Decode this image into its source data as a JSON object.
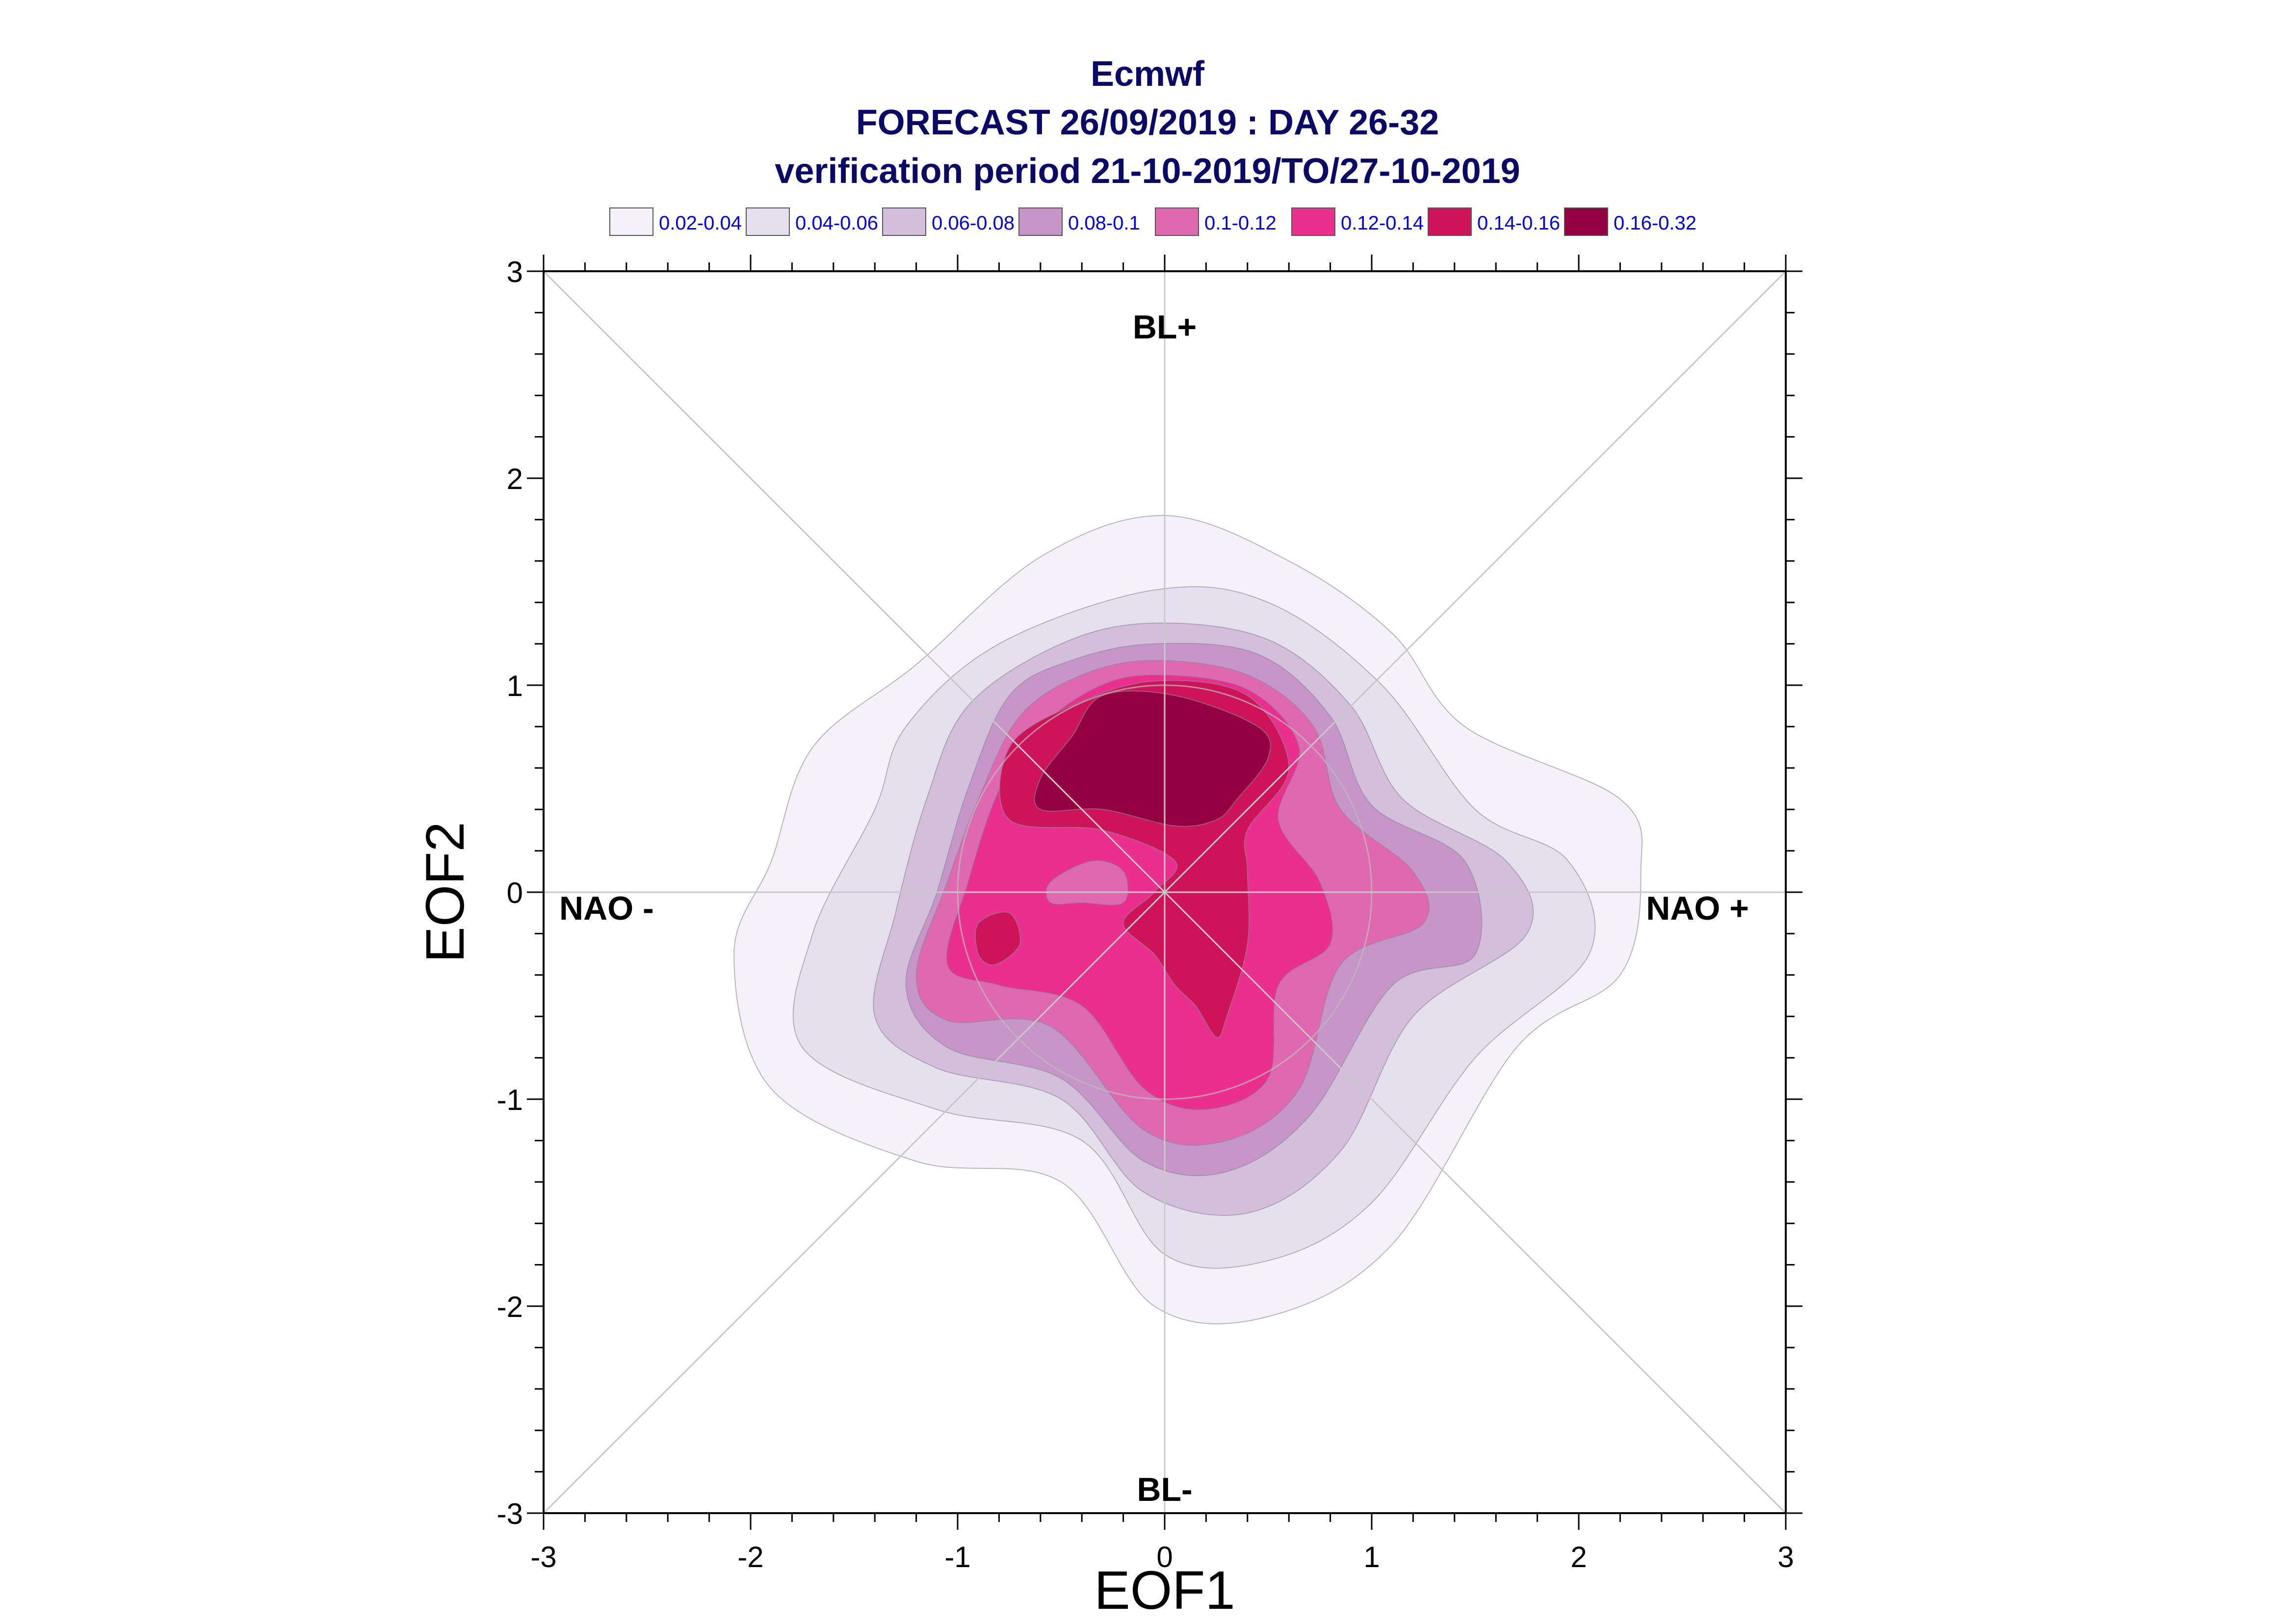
{
  "title_lines": [
    "Ecmwf",
    "FORECAST 26/09/2019 : DAY 26-32",
    "verification period 21-10-2019/TO/27-10-2019"
  ],
  "chart_data": {
    "type": "contour",
    "title": "Ecmwf FORECAST 26/09/2019 : DAY 26-32 verification period 21-10-2019/TO/27-10-2019",
    "xlabel": "EOF1",
    "ylabel": "EOF2",
    "xlim": [
      -3,
      3
    ],
    "ylim": [
      -3,
      3
    ],
    "x_ticks": [
      -3,
      -2,
      -1,
      0,
      1,
      2,
      3
    ],
    "y_ticks": [
      -3,
      -2,
      -1,
      0,
      1,
      2,
      3
    ],
    "x_tick_labels": [
      "-3",
      "-2",
      "-1",
      "0",
      "1",
      "2",
      "3"
    ],
    "y_tick_labels": [
      "-3",
      "-2",
      "-1",
      "0",
      "1",
      "2",
      "3"
    ],
    "legend_placement": "top",
    "legend": [
      {
        "label": "0.02-0.04",
        "color": "#f4f2f8"
      },
      {
        "label": "0.04-0.06",
        "color": "#e6dfee"
      },
      {
        "label": "0.06-0.08",
        "color": "#d3bedb"
      },
      {
        "label": "0.08-0.1",
        "color": "#c795c8"
      },
      {
        "label": "0.1-0.12",
        "color": "#df68b0"
      },
      {
        "label": "0.12-0.14",
        "color": "#ea2f8e"
      },
      {
        "label": "0.14-0.16",
        "color": "#ce1359"
      },
      {
        "label": "0.16-0.32",
        "color": "#950042"
      }
    ],
    "regime_labels": {
      "top": "BL+",
      "bottom": "BL-",
      "left": "NAO -",
      "right": "NAO +"
    },
    "reference_lines": [
      "x=0",
      "y=0",
      "y=x",
      "y=-x",
      "circle r=1"
    ],
    "contours": [
      {
        "level": "0.02-0.04",
        "color": "#f4f2f8",
        "polygon": [
          [
            0,
            1.82
          ],
          [
            0.6,
            1.6
          ],
          [
            1.1,
            1.25
          ],
          [
            1.45,
            0.8
          ],
          [
            2.2,
            0.45
          ],
          [
            2.3,
            0.1
          ],
          [
            2.2,
            -0.4
          ],
          [
            1.7,
            -0.75
          ],
          [
            1.1,
            -1.7
          ],
          [
            0.5,
            -2.05
          ],
          [
            -0.05,
            -2.0
          ],
          [
            -0.5,
            -1.4
          ],
          [
            -1.2,
            -1.3
          ],
          [
            -1.9,
            -0.95
          ],
          [
            -2.08,
            -0.3
          ],
          [
            -1.9,
            0.15
          ],
          [
            -1.7,
            0.7
          ],
          [
            -1.2,
            1.1
          ],
          [
            -0.6,
            1.62
          ]
        ]
      },
      {
        "level": "0.04-0.06",
        "color": "#e6dfee",
        "polygon": [
          [
            -0.05,
            1.46
          ],
          [
            0.5,
            1.4
          ],
          [
            1.05,
            1.0
          ],
          [
            1.5,
            0.4
          ],
          [
            1.95,
            0.15
          ],
          [
            2.05,
            -0.3
          ],
          [
            1.5,
            -0.8
          ],
          [
            1.0,
            -1.5
          ],
          [
            0.5,
            -1.78
          ],
          [
            0,
            -1.75
          ],
          [
            -0.4,
            -1.2
          ],
          [
            -1.1,
            -1.05
          ],
          [
            -1.75,
            -0.75
          ],
          [
            -1.7,
            -0.2
          ],
          [
            -1.4,
            0.4
          ],
          [
            -1.25,
            0.8
          ],
          [
            -0.8,
            1.2
          ]
        ]
      },
      {
        "level": "0.06-0.08",
        "color": "#d3bedb",
        "polygon": [
          [
            -0.05,
            1.3
          ],
          [
            0.5,
            1.22
          ],
          [
            0.9,
            0.9
          ],
          [
            1.15,
            0.45
          ],
          [
            1.65,
            0.15
          ],
          [
            1.75,
            -0.2
          ],
          [
            1.2,
            -0.6
          ],
          [
            0.85,
            -1.25
          ],
          [
            0.4,
            -1.55
          ],
          [
            -0.1,
            -1.45
          ],
          [
            -0.5,
            -1.0
          ],
          [
            -1.1,
            -0.85
          ],
          [
            -1.4,
            -0.6
          ],
          [
            -1.3,
            -0.1
          ],
          [
            -1.15,
            0.45
          ],
          [
            -0.95,
            0.9
          ],
          [
            -0.5,
            1.2
          ]
        ]
      },
      {
        "level": "0.08-0.1",
        "color": "#c795c8",
        "polygon": [
          [
            -0.05,
            1.2
          ],
          [
            0.45,
            1.15
          ],
          [
            0.8,
            0.85
          ],
          [
            1.0,
            0.42
          ],
          [
            1.45,
            0.15
          ],
          [
            1.5,
            -0.3
          ],
          [
            1.1,
            -0.45
          ],
          [
            0.7,
            -1.08
          ],
          [
            0.3,
            -1.35
          ],
          [
            -0.1,
            -1.3
          ],
          [
            -0.5,
            -0.9
          ],
          [
            -1.05,
            -0.75
          ],
          [
            -1.25,
            -0.45
          ],
          [
            -1.1,
            0
          ],
          [
            -0.95,
            0.5
          ],
          [
            -0.75,
            0.95
          ],
          [
            -0.45,
            1.12
          ]
        ]
      },
      {
        "level": "0.1-0.12",
        "color": "#df68b0",
        "polygon": [
          [
            -0.05,
            1.12
          ],
          [
            0.4,
            1.05
          ],
          [
            0.72,
            0.8
          ],
          [
            0.85,
            0.4
          ],
          [
            1.2,
            0.1
          ],
          [
            1.25,
            -0.15
          ],
          [
            0.85,
            -0.35
          ],
          [
            0.65,
            -0.95
          ],
          [
            0.3,
            -1.2
          ],
          [
            -0.1,
            -1.15
          ],
          [
            -0.55,
            -0.65
          ],
          [
            -1.05,
            -0.62
          ],
          [
            -1.2,
            -0.4
          ],
          [
            -1.05,
            0.05
          ],
          [
            -0.9,
            0.45
          ],
          [
            -0.7,
            0.85
          ],
          [
            -0.4,
            1.05
          ]
        ]
      },
      {
        "level": "0.12-0.14",
        "color": "#ea2f8e",
        "polygon": [
          [
            -0.05,
            1.05
          ],
          [
            0.4,
            0.98
          ],
          [
            0.65,
            0.7
          ],
          [
            0.55,
            0.35
          ],
          [
            0.75,
            0.05
          ],
          [
            0.8,
            -0.25
          ],
          [
            0.55,
            -0.45
          ],
          [
            0.5,
            -0.9
          ],
          [
            0.2,
            -1.05
          ],
          [
            -0.1,
            -0.95
          ],
          [
            -0.4,
            -0.55
          ],
          [
            -0.8,
            -0.45
          ],
          [
            -1.05,
            -0.35
          ],
          [
            -0.95,
            0.05
          ],
          [
            -0.82,
            0.45
          ],
          [
            -0.65,
            0.75
          ],
          [
            -0.35,
            0.98
          ]
        ]
      },
      {
        "level": "0.14-0.16",
        "color": "#ce1359",
        "polygon": [
          [
            -0.05,
            1.02
          ],
          [
            0.4,
            0.95
          ],
          [
            0.6,
            0.6
          ],
          [
            0.4,
            0.3
          ],
          [
            0.4,
            0.1
          ],
          [
            0.4,
            -0.25
          ],
          [
            0.3,
            -0.6
          ],
          [
            0.25,
            -0.7
          ],
          [
            0.15,
            -0.55
          ],
          [
            0.05,
            -0.45
          ],
          [
            -0.05,
            -0.3
          ],
          [
            -0.2,
            -0.15
          ],
          [
            -0.05,
            0
          ],
          [
            0.05,
            0.15
          ],
          [
            -0.3,
            0.3
          ],
          [
            -0.75,
            0.35
          ],
          [
            -0.75,
            0.7
          ],
          [
            -0.45,
            0.9
          ]
        ]
      },
      {
        "level": "0.14-0.16",
        "color": "#ce1359",
        "polygon": [
          [
            -0.9,
            -0.15
          ],
          [
            -0.75,
            -0.1
          ],
          [
            -0.7,
            -0.25
          ],
          [
            -0.82,
            -0.35
          ],
          [
            -0.9,
            -0.3
          ]
        ]
      },
      {
        "level": "0.16-0.32",
        "color": "#950042",
        "polygon": [
          [
            -0.3,
            0.95
          ],
          [
            0.05,
            0.95
          ],
          [
            0.45,
            0.8
          ],
          [
            0.5,
            0.65
          ],
          [
            0.35,
            0.45
          ],
          [
            0.25,
            0.35
          ],
          [
            0.05,
            0.32
          ],
          [
            -0.3,
            0.4
          ],
          [
            -0.6,
            0.4
          ],
          [
            -0.6,
            0.55
          ],
          [
            -0.45,
            0.75
          ]
        ]
      }
    ],
    "inner_patch": {
      "label": "0.1-0.12",
      "color": "#df68b0",
      "polygon": [
        [
          -0.55,
          0.05
        ],
        [
          -0.35,
          0.15
        ],
        [
          -0.2,
          0.1
        ],
        [
          -0.2,
          -0.05
        ],
        [
          -0.4,
          -0.05
        ],
        [
          -0.55,
          -0.05
        ]
      ]
    }
  }
}
